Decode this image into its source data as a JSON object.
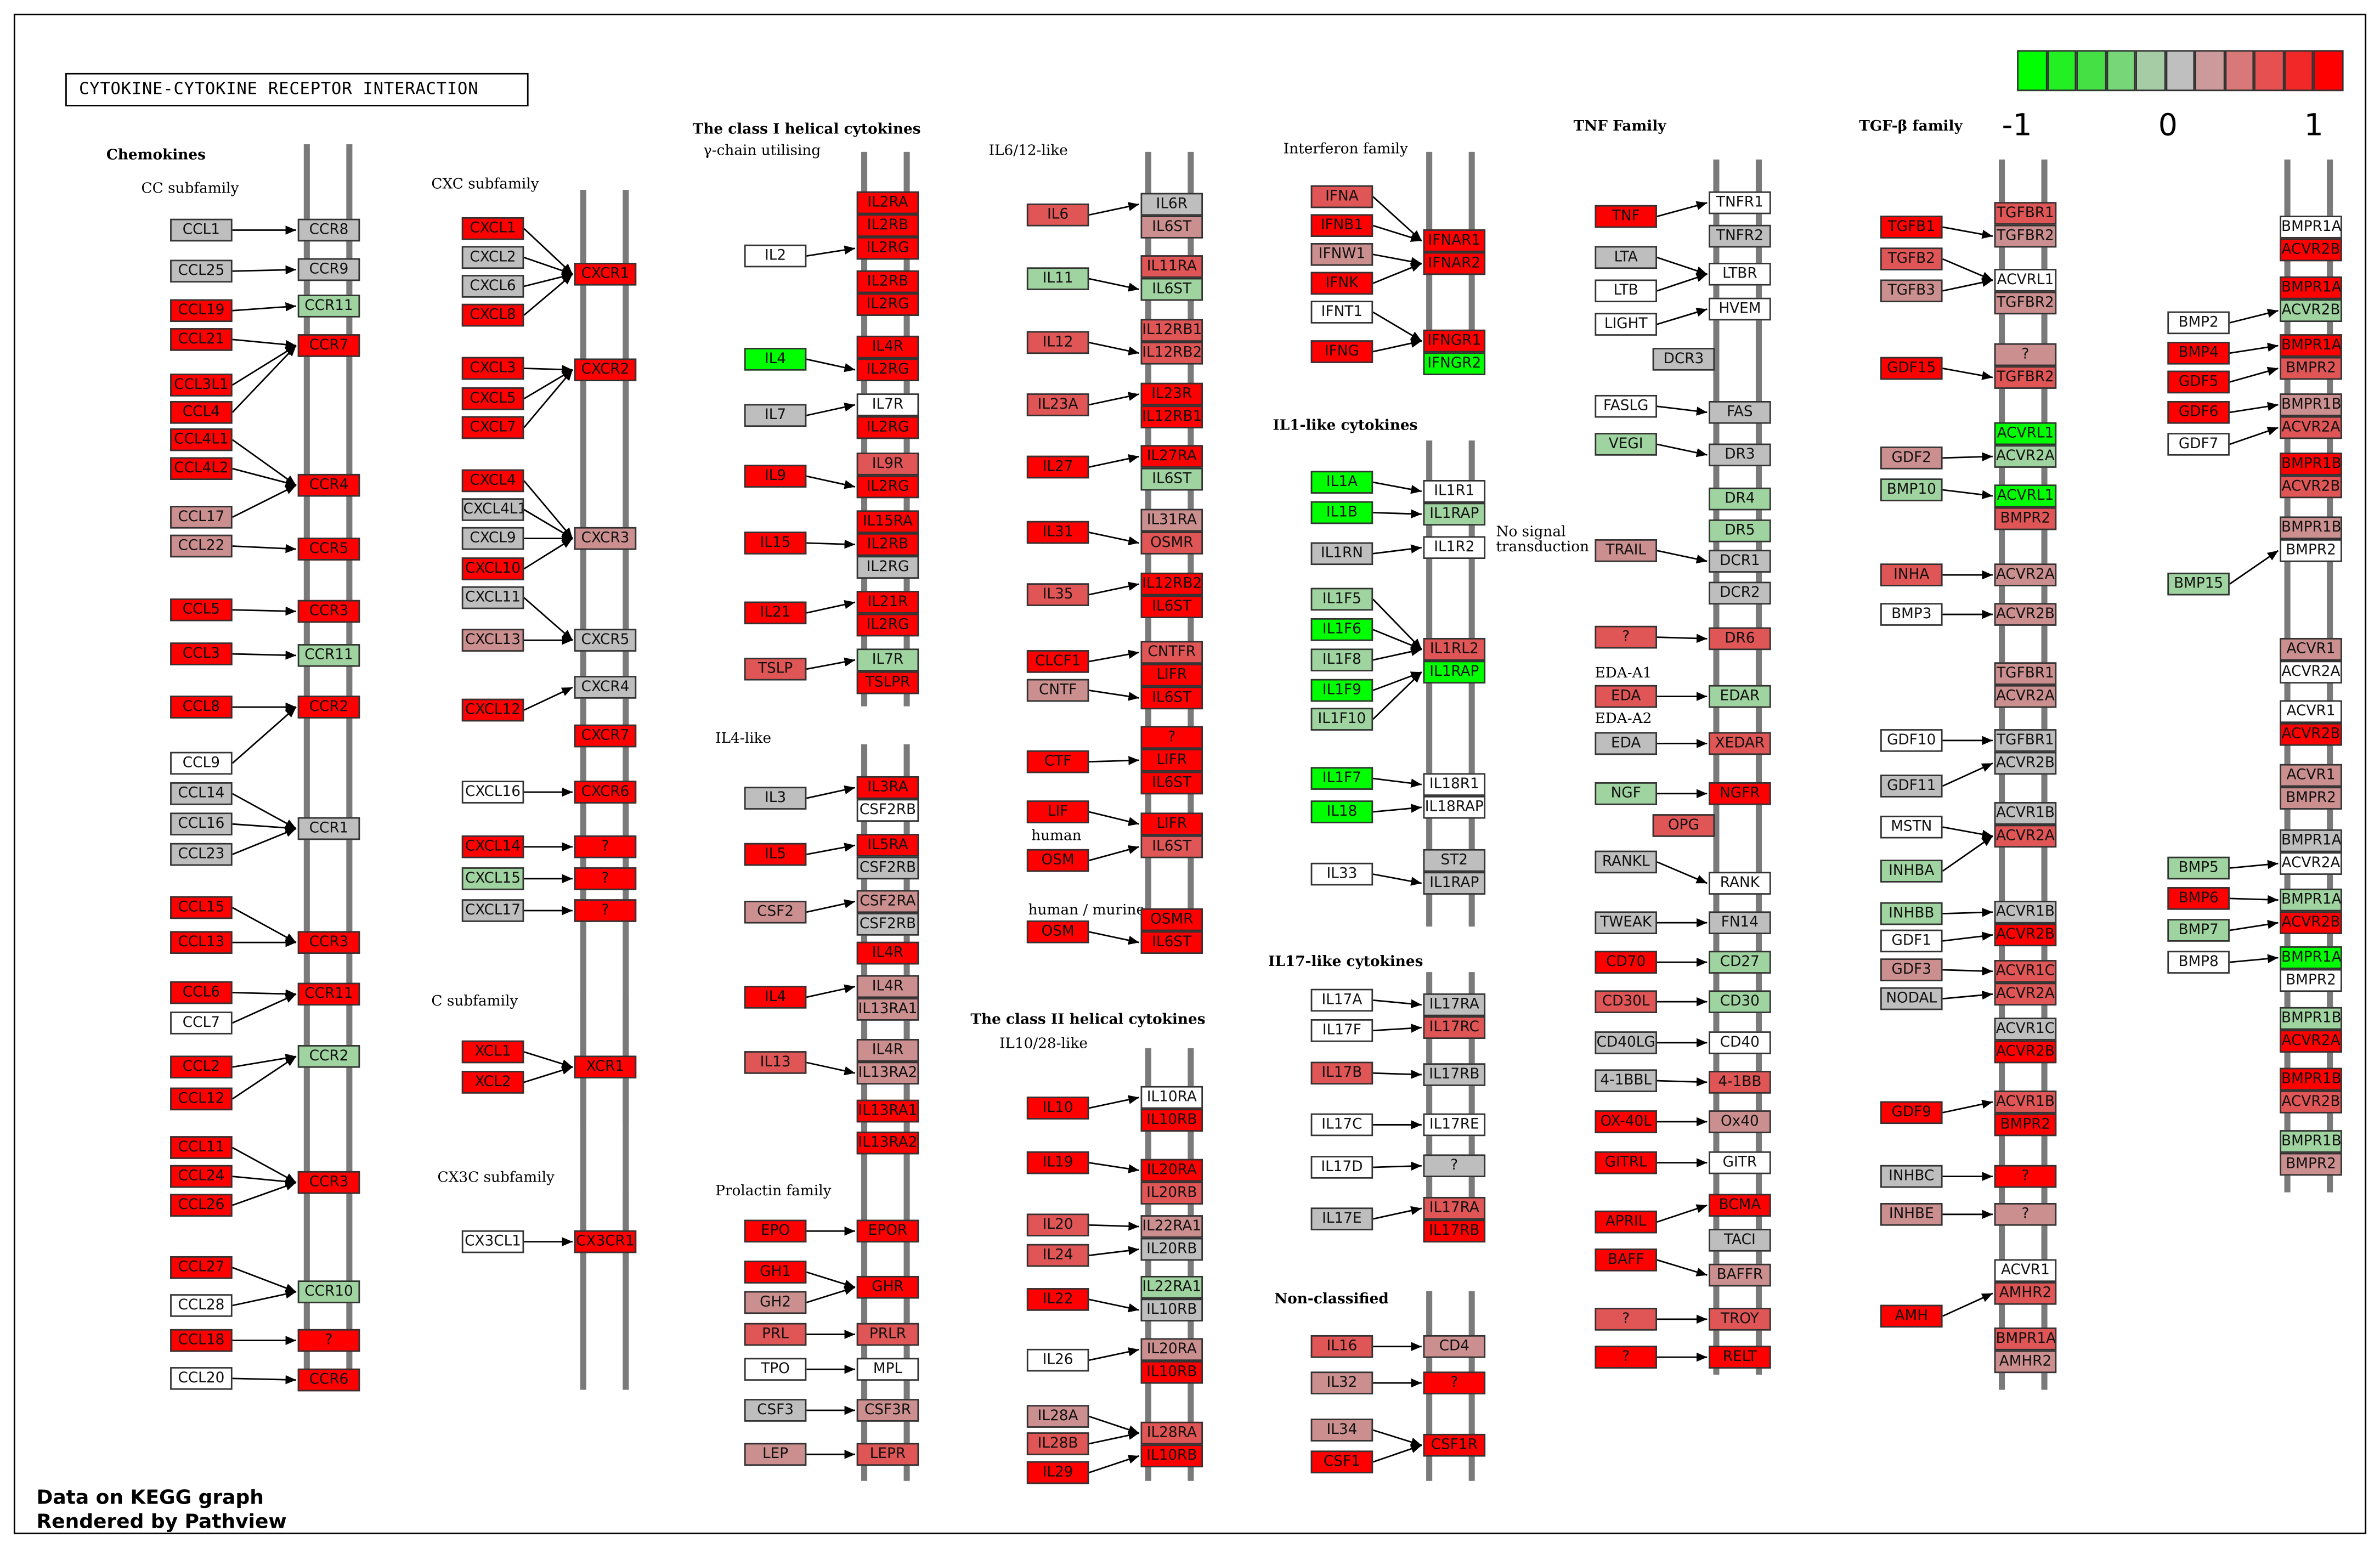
{
  "title": "CYTOKINE-CYTOKINE RECEPTOR INTERACTION",
  "footer": {
    "line1": "Data on KEGG graph",
    "line2": "Rendered by Pathview"
  },
  "legend": {
    "colors": [
      "#00ff00",
      "#22f022",
      "#44e044",
      "#77d677",
      "#a6cca6",
      "#bfbfbf",
      "#cc9a9a",
      "#d87878",
      "#e65050",
      "#f22828",
      "#ff0000"
    ],
    "ticks": [
      "-1",
      "0",
      "1"
    ]
  },
  "colors": {
    "R": "#ff0000",
    "r": "#e05555",
    "p": "#cc8f8f",
    "g": "#bebebe",
    "l": "#9fd39f",
    "G": "#00ff00",
    "w": "#ffffff"
  },
  "labels": [
    "Chemokines",
    "CC subfamily",
    "CXC subfamily",
    "C subfamily",
    "CX3C subfamily",
    "The class I helical cytokines",
    "γ-chain utilising",
    "IL4-like",
    "Prolactin family",
    "IL6/12-like",
    "The class II helical cytokines",
    "IL10/28-like",
    "Interferon family",
    "IL1-like cytokines",
    "No signal",
    "transduction",
    "IL17-like cytokines",
    "Non-classified",
    "TNF Family",
    "EDA-A1",
    "EDA-A2",
    "human",
    "human / murine",
    "TGF-β family"
  ],
  "nodes": [
    "CCR8",
    "CCR9",
    "CCR11",
    "CCR7",
    "CCL1",
    "CCL25",
    "CCL19",
    "CCL21",
    "CCL3L1",
    "CCL4",
    "CCL4L1",
    "CCL4L2",
    "CCL17",
    "CCL22",
    "CCR4",
    "CCR5",
    "CCR3",
    "CCR11",
    "CCR2",
    "CCL5",
    "CCL3",
    "CCL8",
    "CCL9",
    "CCL14",
    "CCL16",
    "CCL23",
    "CCR1",
    "CCL15",
    "CCL13",
    "CCR3",
    "CCL6",
    "CCL7",
    "CCR11",
    "CCR2",
    "CCL2",
    "CCL12",
    "CCL11",
    "CCL24",
    "CCL26",
    "CCR3",
    "CCL27",
    "CCL28",
    "CCR10",
    "CCL18",
    "?",
    "CCL20",
    "CCR6",
    "CXCL1",
    "CXCL2",
    "CXCL6",
    "CXCL8",
    "CXCR1",
    "CXCL3",
    "CXCL5",
    "CXCL7",
    "CXCR2",
    "CXCL4",
    "CXCL4L1",
    "CXCL9",
    "CXCL10",
    "CXCL11",
    "CXCR3",
    "CXCL13",
    "CXCR5",
    "CXCR4",
    "CXCL12",
    "CXCR7",
    "CXCL16",
    "CXCR6",
    "CXCL14",
    "?",
    "CXCL15",
    "?",
    "CXCL17",
    "?",
    "XCL1",
    "XCL2",
    "XCR1",
    "CX3CL1",
    "CX3CR1",
    "IL2RA",
    "IL2RB",
    "IL2RG",
    "IL2",
    "IL2RB",
    "IL2RG",
    "IL4",
    "IL4R",
    "IL2RG",
    "IL7",
    "IL7R",
    "IL2RG",
    "IL9",
    "IL9R",
    "IL2RG",
    "IL15",
    "IL15RA",
    "IL2RB",
    "IL2RG",
    "IL21",
    "IL21R",
    "IL2RG",
    "TSLP",
    "IL7R",
    "TSLPR",
    "IL3",
    "IL3RA",
    "CSF2RB",
    "IL5",
    "IL5RA",
    "CSF2RB",
    "CSF2",
    "CSF2RA",
    "CSF2RB",
    "IL4",
    "IL4R",
    "IL4R",
    "IL13RA1",
    "IL13",
    "IL4R",
    "IL13RA2",
    "IL13RA1",
    "IL13RA2",
    "EPO",
    "EPOR",
    "GH1",
    "GH2",
    "GHR",
    "PRL",
    "PRLR",
    "TPO",
    "MPL",
    "CSF3",
    "CSF3R",
    "LEP",
    "LEPR",
    "IL6",
    "IL6R",
    "IL6ST",
    "IL11",
    "IL11RA",
    "IL6ST",
    "IL12",
    "IL12RB1",
    "IL12RB2",
    "IL23A",
    "IL23R",
    "IL12RB1",
    "IL27",
    "IL27RA",
    "IL6ST",
    "IL31",
    "IL31RA",
    "OSMR",
    "IL35",
    "IL12RB2",
    "IL6ST",
    "CLCF1",
    "CNTF",
    "CNTFR",
    "LIFR",
    "IL6ST",
    "CTF",
    "?",
    "LIFR",
    "IL6ST",
    "LIF",
    "OSM",
    "LIFR",
    "IL6ST",
    "OSM",
    "OSMR",
    "IL6ST",
    "IL10",
    "IL10RA",
    "IL10RB",
    "IL19",
    "IL20",
    "IL24",
    "IL20RA",
    "IL20RB",
    "IL22RA1",
    "IL20RB",
    "IL22",
    "IL22RA1",
    "IL10RB",
    "IL26",
    "IL20RA",
    "IL10RB",
    "IL28A",
    "IL28B",
    "IL29",
    "IL28RA",
    "IL10RB",
    "IFNA",
    "IFNB1",
    "IFNW1",
    "IFNK",
    "IFNT1",
    "IFNAR1",
    "IFNAR2",
    "IFNG",
    "IFNGR1",
    "IFNGR2",
    "IL1A",
    "IL1B",
    "IL1RN",
    "IL1R1",
    "IL1RAP",
    "IL1R2",
    "IL1F5",
    "IL1F6",
    "IL1F8",
    "IL1F9",
    "IL1F10",
    "IL1RL2",
    "IL1RAP",
    "IL1F7",
    "IL18",
    "IL18R1",
    "IL18RAP",
    "IL33",
    "ST2",
    "IL1RAP",
    "IL17A",
    "IL17F",
    "IL17RA",
    "IL17RC",
    "IL17B",
    "IL17RB",
    "IL17C",
    "IL17RE",
    "IL17D",
    "?",
    "IL17E",
    "IL17RA",
    "IL17RB",
    "IL16",
    "CD4",
    "IL32",
    "?",
    "IL34",
    "CSF1",
    "CSF1R",
    "TNF",
    "LTA",
    "LTB",
    "LIGHT",
    "TNFR1",
    "TNFR2",
    "LTBR",
    "HVEM",
    "DCR3",
    "FASLG",
    "VEGI",
    "FAS",
    "DR3",
    "TRAIL",
    "DR4",
    "DR5",
    "DCR1",
    "DCR2",
    "?",
    "DR6",
    "EDA",
    "EDAR",
    "EDA",
    "XEDAR",
    "NGF",
    "NGFR",
    "OPG",
    "RANKL",
    "RANK",
    "TWEAK",
    "FN14",
    "CD70",
    "CD27",
    "CD30L",
    "CD30",
    "CD40LG",
    "CD40",
    "4-1BBL",
    "4-1BB",
    "OX-40L",
    "Ox40",
    "GITRL",
    "GITR",
    "APRIL",
    "BAFF",
    "BCMA",
    "TACI",
    "BAFFR",
    "?",
    "TROY",
    "?",
    "RELT",
    "TGFB1",
    "TGFB2",
    "TGFB3",
    "TGFBR1",
    "TGFBR2",
    "ACVRL1",
    "TGFBR2",
    "GDF15",
    "?",
    "TGFBR2",
    "GDF2",
    "BMP10",
    "ACVRL1",
    "ACVR2A",
    "ACVRL1",
    "BMPR2",
    "INHA",
    "BMP3",
    "ACVR2A",
    "ACVR2B",
    "TGFBR1",
    "ACVR2A",
    "GDF10",
    "GDF11",
    "MSTN",
    "TGFBR1",
    "ACVR2B",
    "ACVR1B",
    "ACVR2A",
    "INHBA",
    "INHBB",
    "GDF1",
    "GDF3",
    "NODAL",
    "ACVR1B",
    "ACVR2B",
    "ACVR1C",
    "ACVR2A",
    "ACVR1C",
    "ACVR2B",
    "GDF9",
    "ACVR1B",
    "BMPR2",
    "INHBC",
    "?",
    "INHBE",
    "?",
    "AMH",
    "ACVR1",
    "AMHR2",
    "BMPR1A",
    "AMHR2",
    "BMP2",
    "BMP4",
    "GDF5",
    "GDF6",
    "GDF7",
    "BMP15",
    "BMPR1A",
    "ACVR2B",
    "BMPR1A",
    "ACVR2B",
    "BMPR1A",
    "BMPR2",
    "BMPR1B",
    "ACVR2A",
    "BMPR1B",
    "ACVR2B",
    "BMPR1B",
    "BMPR2",
    "ACVR1",
    "ACVR2A",
    "ACVR1",
    "ACVR2B",
    "ACVR1",
    "BMPR2",
    "BMP5",
    "BMP6",
    "BMP7",
    "BMP8",
    "BMPR1A",
    "ACVR2A",
    "BMPR1A",
    "ACVR2B",
    "BMPR1A",
    "BMPR2",
    "BMPR1B",
    "ACVR2A",
    "BMPR1B",
    "ACVR2B",
    "BMPR1B",
    "BMPR2"
  ],
  "node_colors": "gglRggRRRRRRppRRRlRRRRwggggRRRRwRlRRRRRRRwlRRwRRggRRRRRRRggRgppggRRwRRRlRgRRRRwRRRRwRRGRRgwRRrRRRRgRRRrlRgRwRRgppgRRpprppRRRRRpRrrwwgpprrgplrlrrrrRRRRlRprrRRRprRRRRRRRRRrRRRRwRRrrRrpgRlgwpRprRrRrRpRwRRRRGGGgwlwlGlGlrGGGwwwggwwgrrgwwwggrRrppRpRRRgwwwgwwgwlggpllggrrrlgrlRrgwggRlrlgwgrRpRwRRRgprrRRRrprpwpRprplGlGrrwppppwgwgggrllwpggRrrgRRrRgRppRwrrpwRRRwlwRRlRrprRrpwpwwRpplRlwgwlRGwlRRrlpgwrllRGwlGglGRgpRrlGRwwgRGRggRgwlGlGlgpggwgwgplGGGrpgggGwGGGGGGGlGGGGlGlGlglGlllrlrrGGGGGGGGGGGg"
}
